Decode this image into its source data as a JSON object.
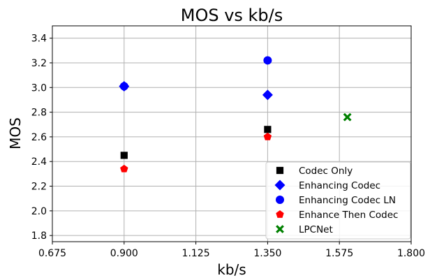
{
  "chart_data": {
    "type": "scatter",
    "title": "MOS vs kb/s",
    "xlabel": "kb/s",
    "ylabel": "MOS",
    "xlim": [
      0.675,
      1.8
    ],
    "ylim": [
      1.75,
      3.5
    ],
    "xticks": [
      0.675,
      0.9,
      1.125,
      1.35,
      1.575,
      1.8
    ],
    "xtick_labels": [
      "0.675",
      "0.900",
      "1.125",
      "1.350",
      "1.575",
      "1.800"
    ],
    "yticks": [
      1.8,
      2.0,
      2.2,
      2.4,
      2.6,
      2.8,
      3.0,
      3.2,
      3.4
    ],
    "ytick_labels": [
      "1.8",
      "2.0",
      "2.2",
      "2.4",
      "2.6",
      "2.8",
      "3.0",
      "3.2",
      "3.4"
    ],
    "grid": true,
    "legend_position": "bottom-right",
    "series": [
      {
        "name": "Codec Only",
        "marker": "square",
        "color": "#000000",
        "points": [
          {
            "x": 0.9,
            "y": 2.45
          },
          {
            "x": 1.35,
            "y": 2.66
          }
        ]
      },
      {
        "name": "Enhancing Codec",
        "marker": "diamond",
        "color": "#0000ff",
        "points": [
          {
            "x": 0.9,
            "y": 3.01
          },
          {
            "x": 1.35,
            "y": 2.94
          }
        ]
      },
      {
        "name": "Enhancing Codec LN",
        "marker": "circle",
        "color": "#0000ff",
        "points": [
          {
            "x": 0.9,
            "y": 3.01
          },
          {
            "x": 1.35,
            "y": 3.22
          }
        ]
      },
      {
        "name": "Enhance Then Codec",
        "marker": "pentagon",
        "color": "#ff0000",
        "points": [
          {
            "x": 0.9,
            "y": 2.34
          },
          {
            "x": 1.35,
            "y": 2.6
          }
        ]
      },
      {
        "name": "LPCNet",
        "marker": "x",
        "color": "#008000",
        "points": [
          {
            "x": 1.6,
            "y": 2.76
          }
        ]
      }
    ]
  }
}
